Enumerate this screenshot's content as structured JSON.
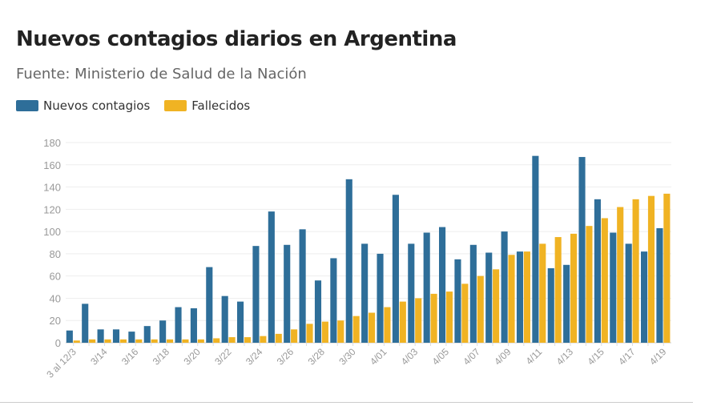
{
  "header": {
    "title": "Nuevos contagios diarios en Argentina",
    "subtitle": "Fuente: Ministerio de Salud de la Nación"
  },
  "chart_data": {
    "type": "bar",
    "title": "Nuevos contagios diarios en Argentina",
    "subtitle": "Fuente: Ministerio de Salud de la Nación",
    "xlabel": "",
    "ylabel": "",
    "ylim": [
      0,
      180
    ],
    "yticks": [
      0,
      20,
      40,
      60,
      80,
      100,
      120,
      140,
      160,
      180
    ],
    "grid": true,
    "legend": "top-left",
    "categories": [
      "3 al 12/3",
      "3/13",
      "3/14",
      "3/15",
      "3/16",
      "3/17",
      "3/18",
      "3/19",
      "3/20",
      "3/21",
      "3/22",
      "3/23",
      "3/24",
      "3/25",
      "3/26",
      "3/27",
      "3/28",
      "3/29",
      "3/30",
      "3/31",
      "4/01",
      "4/02",
      "4/03",
      "4/04",
      "4/05",
      "4/06",
      "4/07",
      "4/08",
      "4/09",
      "4/10",
      "4/11",
      "4/12",
      "4/13",
      "4/14",
      "4/15",
      "4/16",
      "4/17",
      "4/18",
      "4/19"
    ],
    "tick_labels": [
      "3 al 12/3",
      "3/14",
      "3/16",
      "3/18",
      "3/20",
      "3/22",
      "3/24",
      "3/26",
      "3/28",
      "3/30",
      "4/01",
      "4/03",
      "4/05",
      "4/07",
      "4/09",
      "4/11",
      "4/13",
      "4/15",
      "4/17",
      "4/19"
    ],
    "series": [
      {
        "name": "Nuevos contagios",
        "color": "#2e6e99",
        "values": [
          11,
          35,
          12,
          12,
          10,
          15,
          20,
          32,
          31,
          68,
          42,
          37,
          87,
          118,
          88,
          102,
          56,
          76,
          147,
          89,
          80,
          133,
          89,
          99,
          104,
          75,
          88,
          81,
          100,
          82,
          168,
          67,
          70,
          167,
          129,
          99,
          89,
          82,
          103
        ]
      },
      {
        "name": "Fallecidos",
        "color": "#f0b323",
        "values": [
          2,
          3,
          3,
          3,
          3,
          3,
          3,
          3,
          3,
          4,
          5,
          5,
          6,
          8,
          12,
          17,
          19,
          20,
          24,
          27,
          32,
          37,
          40,
          44,
          46,
          53,
          60,
          66,
          79,
          82,
          89,
          95,
          98,
          105,
          112,
          122,
          129,
          132,
          134
        ]
      }
    ]
  }
}
